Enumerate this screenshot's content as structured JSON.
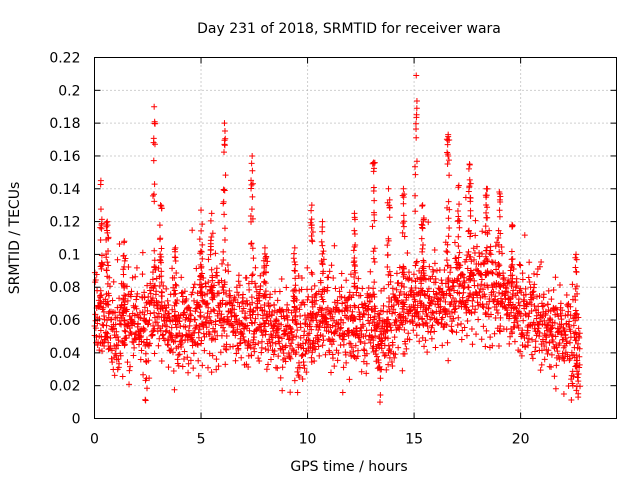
{
  "chart_data": {
    "type": "scatter",
    "title": "Day 231 of 2018, SRMTID for receiver wara",
    "xlabel": "GPS time / hours",
    "ylabel": "SRMTID / TECUs",
    "xlim": [
      0,
      24.5
    ],
    "ylim": [
      0,
      0.22
    ],
    "xticks": [
      0,
      5,
      10,
      15,
      20
    ],
    "xtick_labels": [
      "0",
      "5",
      "10",
      "15",
      "20"
    ],
    "yticks": [
      0,
      0.02,
      0.04,
      0.06,
      0.08,
      0.1,
      0.12,
      0.14,
      0.16,
      0.18,
      0.2,
      0.22
    ],
    "ytick_labels": [
      "0",
      "0.02",
      "0.04",
      "0.06",
      "0.08",
      "0.1",
      "0.12",
      "0.14",
      "0.16",
      "0.18",
      "0.2",
      "0.22"
    ],
    "grid": true,
    "marker": "+",
    "color": "#ff0000",
    "series": [
      {
        "name": "SRMTID",
        "x_range": [
          0,
          22.8
        ],
        "base_level": [
          [
            0,
            0.065
          ],
          [
            0.5,
            0.06
          ],
          [
            1,
            0.052
          ],
          [
            2,
            0.058
          ],
          [
            3,
            0.066
          ],
          [
            4,
            0.052
          ],
          [
            5,
            0.06
          ],
          [
            6,
            0.066
          ],
          [
            7,
            0.058
          ],
          [
            8,
            0.062
          ],
          [
            9,
            0.05
          ],
          [
            10,
            0.055
          ],
          [
            11,
            0.058
          ],
          [
            12,
            0.056
          ],
          [
            13,
            0.058
          ],
          [
            13.5,
            0.048
          ],
          [
            14,
            0.06
          ],
          [
            15,
            0.07
          ],
          [
            16,
            0.072
          ],
          [
            17,
            0.074
          ],
          [
            18,
            0.08
          ],
          [
            19,
            0.076
          ],
          [
            20,
            0.066
          ],
          [
            21,
            0.06
          ],
          [
            22,
            0.05
          ],
          [
            22.8,
            0.046
          ]
        ],
        "spikes": [
          {
            "x": 0.3,
            "peak": 0.145
          },
          {
            "x": 0.6,
            "peak": 0.12
          },
          {
            "x": 1.4,
            "peak": 0.108
          },
          {
            "x": 2.8,
            "peak": 0.19
          },
          {
            "x": 3.1,
            "peak": 0.13
          },
          {
            "x": 3.8,
            "peak": 0.104
          },
          {
            "x": 5.0,
            "peak": 0.127
          },
          {
            "x": 5.5,
            "peak": 0.125
          },
          {
            "x": 6.1,
            "peak": 0.18
          },
          {
            "x": 7.4,
            "peak": 0.16
          },
          {
            "x": 8.0,
            "peak": 0.104
          },
          {
            "x": 9.4,
            "peak": 0.104
          },
          {
            "x": 10.2,
            "peak": 0.13
          },
          {
            "x": 10.7,
            "peak": 0.12
          },
          {
            "x": 12.2,
            "peak": 0.125
          },
          {
            "x": 13.1,
            "peak": 0.156
          },
          {
            "x": 13.8,
            "peak": 0.14
          },
          {
            "x": 14.5,
            "peak": 0.14
          },
          {
            "x": 15.1,
            "peak": 0.209
          },
          {
            "x": 15.4,
            "peak": 0.13
          },
          {
            "x": 16.6,
            "peak": 0.173
          },
          {
            "x": 17.1,
            "peak": 0.142
          },
          {
            "x": 17.6,
            "peak": 0.155
          },
          {
            "x": 18.4,
            "peak": 0.14
          },
          {
            "x": 19.0,
            "peak": 0.138
          },
          {
            "x": 19.6,
            "peak": 0.118
          },
          {
            "x": 22.6,
            "peak": 0.1
          }
        ],
        "dips": [
          {
            "x": 2.4,
            "low": 0.011
          },
          {
            "x": 13.4,
            "low": 0.01
          },
          {
            "x": 22.7,
            "low": 0.013
          }
        ],
        "value_range": [
          0.01,
          0.209
        ]
      }
    ]
  }
}
